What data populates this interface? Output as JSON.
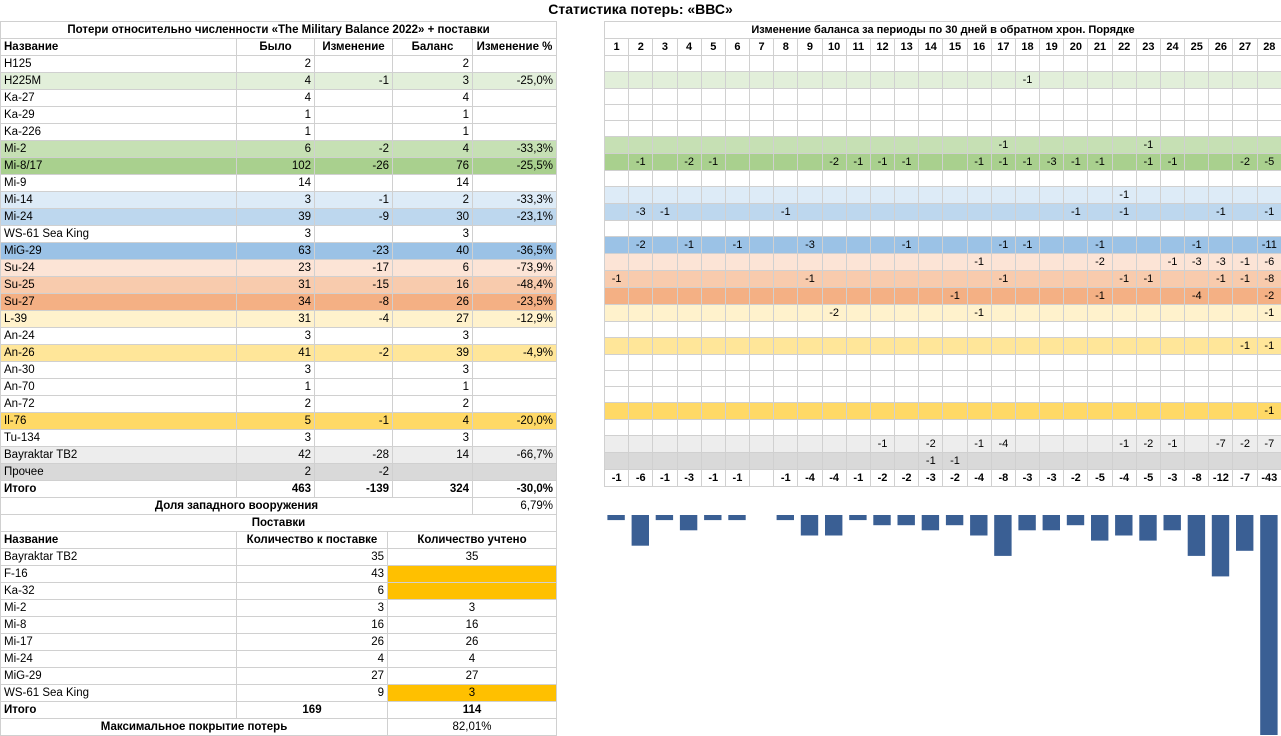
{
  "title": "Статистика потерь: «ВВС»",
  "left_table": {
    "caption": "Потери относительно численности «The Military Balance 2022» + поставки",
    "headers": [
      "Название",
      "Было",
      "Изменение",
      "Баланс",
      "Изменение %"
    ],
    "rows": [
      {
        "name": "H125",
        "was": "2",
        "change": "",
        "balance": "2",
        "pct": "",
        "color": "#ffffff"
      },
      {
        "name": "H225M",
        "was": "4",
        "change": "-1",
        "balance": "3",
        "pct": "-25,0%",
        "color": "#e2efda"
      },
      {
        "name": "Ka-27",
        "was": "4",
        "change": "",
        "balance": "4",
        "pct": "",
        "color": "#ffffff"
      },
      {
        "name": "Ka-29",
        "was": "1",
        "change": "",
        "balance": "1",
        "pct": "",
        "color": "#ffffff"
      },
      {
        "name": "Ka-226",
        "was": "1",
        "change": "",
        "balance": "1",
        "pct": "",
        "color": "#ffffff"
      },
      {
        "name": "Mi-2",
        "was": "6",
        "change": "-2",
        "balance": "4",
        "pct": "-33,3%",
        "color": "#c6e0b4"
      },
      {
        "name": "Mi-8/17",
        "was": "102",
        "change": "-26",
        "balance": "76",
        "pct": "-25,5%",
        "color": "#a9d08e"
      },
      {
        "name": "Mi-9",
        "was": "14",
        "change": "",
        "balance": "14",
        "pct": "",
        "color": "#ffffff"
      },
      {
        "name": "Mi-14",
        "was": "3",
        "change": "-1",
        "balance": "2",
        "pct": "-33,3%",
        "color": "#ddebf7"
      },
      {
        "name": "Mi-24",
        "was": "39",
        "change": "-9",
        "balance": "30",
        "pct": "-23,1%",
        "color": "#bdd7ee"
      },
      {
        "name": "WS-61 Sea King",
        "was": "3",
        "change": "",
        "balance": "3",
        "pct": "",
        "color": "#ffffff"
      },
      {
        "name": "MiG-29",
        "was": "63",
        "change": "-23",
        "balance": "40",
        "pct": "-36,5%",
        "color": "#9bc2e6"
      },
      {
        "name": "Su-24",
        "was": "23",
        "change": "-17",
        "balance": "6",
        "pct": "-73,9%",
        "color": "#fce4d6"
      },
      {
        "name": "Su-25",
        "was": "31",
        "change": "-15",
        "balance": "16",
        "pct": "-48,4%",
        "color": "#f8cbad"
      },
      {
        "name": "Su-27",
        "was": "34",
        "change": "-8",
        "balance": "26",
        "pct": "-23,5%",
        "color": "#f4b084"
      },
      {
        "name": "L-39",
        "was": "31",
        "change": "-4",
        "balance": "27",
        "pct": "-12,9%",
        "color": "#fff2cc"
      },
      {
        "name": "An-24",
        "was": "3",
        "change": "",
        "balance": "3",
        "pct": "",
        "color": "#ffffff"
      },
      {
        "name": "An-26",
        "was": "41",
        "change": "-2",
        "balance": "39",
        "pct": "-4,9%",
        "color": "#ffe699"
      },
      {
        "name": "An-30",
        "was": "3",
        "change": "",
        "balance": "3",
        "pct": "",
        "color": "#ffffff"
      },
      {
        "name": "An-70",
        "was": "1",
        "change": "",
        "balance": "1",
        "pct": "",
        "color": "#ffffff"
      },
      {
        "name": "An-72",
        "was": "2",
        "change": "",
        "balance": "2",
        "pct": "",
        "color": "#ffffff"
      },
      {
        "name": "Il-76",
        "was": "5",
        "change": "-1",
        "balance": "4",
        "pct": "-20,0%",
        "color": "#ffd966"
      },
      {
        "name": "Tu-134",
        "was": "3",
        "change": "",
        "balance": "3",
        "pct": "",
        "color": "#ffffff"
      },
      {
        "name": "Bayraktar TB2",
        "was": "42",
        "change": "-28",
        "balance": "14",
        "pct": "-66,7%",
        "color": "#ededed"
      },
      {
        "name": "Прочее",
        "was": "2",
        "change": "-2",
        "balance": "",
        "pct": "",
        "color": "#d9d9d9"
      }
    ],
    "total": {
      "name": "Итого",
      "was": "463",
      "change": "-139",
      "balance": "324",
      "pct": "-30,0%"
    },
    "western_label": "Доля западного вооружения",
    "western_value": "6,79%"
  },
  "right_table": {
    "caption": "Изменение баланса за периоды по 30 дней в обратном хрон. Порядке",
    "periods": [
      "1",
      "2",
      "3",
      "4",
      "5",
      "6",
      "7",
      "8",
      "9",
      "10",
      "11",
      "12",
      "13",
      "14",
      "15",
      "16",
      "17",
      "18",
      "19",
      "20",
      "21",
      "22",
      "23",
      "24",
      "25",
      "26",
      "27",
      "28"
    ],
    "rows": [
      [],
      [
        {
          "c": 18,
          "v": "-1"
        }
      ],
      [],
      [],
      [],
      [
        {
          "c": 17,
          "v": "-1"
        },
        {
          "c": 23,
          "v": "-1"
        }
      ],
      [
        {
          "c": 2,
          "v": "-1"
        },
        {
          "c": 4,
          "v": "-2"
        },
        {
          "c": 5,
          "v": "-1"
        },
        {
          "c": 10,
          "v": "-2"
        },
        {
          "c": 11,
          "v": "-1"
        },
        {
          "c": 12,
          "v": "-1"
        },
        {
          "c": 13,
          "v": "-1"
        },
        {
          "c": 16,
          "v": "-1"
        },
        {
          "c": 17,
          "v": "-1"
        },
        {
          "c": 18,
          "v": "-1"
        },
        {
          "c": 19,
          "v": "-3"
        },
        {
          "c": 20,
          "v": "-1"
        },
        {
          "c": 21,
          "v": "-1"
        },
        {
          "c": 23,
          "v": "-1"
        },
        {
          "c": 24,
          "v": "-1"
        },
        {
          "c": 27,
          "v": "-2"
        },
        {
          "c": 28,
          "v": "-5"
        }
      ],
      [],
      [
        {
          "c": 22,
          "v": "-1"
        }
      ],
      [
        {
          "c": 2,
          "v": "-3"
        },
        {
          "c": 3,
          "v": "-1"
        },
        {
          "c": 8,
          "v": "-1"
        },
        {
          "c": 20,
          "v": "-1"
        },
        {
          "c": 22,
          "v": "-1"
        },
        {
          "c": 26,
          "v": "-1"
        },
        {
          "c": 28,
          "v": "-1"
        }
      ],
      [],
      [
        {
          "c": 2,
          "v": "-2"
        },
        {
          "c": 4,
          "v": "-1"
        },
        {
          "c": 6,
          "v": "-1"
        },
        {
          "c": 9,
          "v": "-3"
        },
        {
          "c": 13,
          "v": "-1"
        },
        {
          "c": 17,
          "v": "-1"
        },
        {
          "c": 18,
          "v": "-1"
        },
        {
          "c": 21,
          "v": "-1"
        },
        {
          "c": 25,
          "v": "-1"
        },
        {
          "c": 28,
          "v": "-11"
        }
      ],
      [
        {
          "c": 16,
          "v": "-1"
        },
        {
          "c": 21,
          "v": "-2"
        },
        {
          "c": 24,
          "v": "-1"
        },
        {
          "c": 25,
          "v": "-3"
        },
        {
          "c": 26,
          "v": "-3"
        },
        {
          "c": 27,
          "v": "-1"
        },
        {
          "c": 28,
          "v": "-6"
        }
      ],
      [
        {
          "c": 1,
          "v": "-1"
        },
        {
          "c": 9,
          "v": "-1"
        },
        {
          "c": 17,
          "v": "-1"
        },
        {
          "c": 22,
          "v": "-1"
        },
        {
          "c": 23,
          "v": "-1"
        },
        {
          "c": 26,
          "v": "-1"
        },
        {
          "c": 27,
          "v": "-1"
        },
        {
          "c": 28,
          "v": "-8"
        }
      ],
      [
        {
          "c": 15,
          "v": "-1"
        },
        {
          "c": 21,
          "v": "-1"
        },
        {
          "c": 25,
          "v": "-4"
        },
        {
          "c": 28,
          "v": "-2"
        }
      ],
      [
        {
          "c": 10,
          "v": "-2"
        },
        {
          "c": 16,
          "v": "-1"
        },
        {
          "c": 28,
          "v": "-1"
        }
      ],
      [],
      [
        {
          "c": 27,
          "v": "-1"
        },
        {
          "c": 28,
          "v": "-1"
        }
      ],
      [],
      [],
      [],
      [
        {
          "c": 28,
          "v": "-1"
        }
      ],
      [],
      [
        {
          "c": 12,
          "v": "-1"
        },
        {
          "c": 14,
          "v": "-2"
        },
        {
          "c": 16,
          "v": "-1"
        },
        {
          "c": 17,
          "v": "-4"
        },
        {
          "c": 22,
          "v": "-1"
        },
        {
          "c": 23,
          "v": "-2"
        },
        {
          "c": 24,
          "v": "-1"
        },
        {
          "c": 26,
          "v": "-7"
        },
        {
          "c": 27,
          "v": "-2"
        },
        {
          "c": 28,
          "v": "-7"
        }
      ],
      [
        {
          "c": 14,
          "v": "-1"
        },
        {
          "c": 15,
          "v": "-1"
        }
      ]
    ],
    "totals": [
      "-1",
      "-6",
      "-1",
      "-3",
      "-1",
      "-1",
      "",
      "-1",
      "-4",
      "-4",
      "-1",
      "-2",
      "-2",
      "-3",
      "-2",
      "-4",
      "-8",
      "-3",
      "-3",
      "-2",
      "-5",
      "-4",
      "-5",
      "-3",
      "-8",
      "-12",
      "-7",
      "-43"
    ]
  },
  "supplies": {
    "caption": "Поставки",
    "headers": [
      "Название",
      "Количество к поставке",
      "Количество учтено"
    ],
    "rows": [
      {
        "name": "Bayraktar TB2",
        "to_deliver": "35",
        "counted": "35",
        "highlight": false
      },
      {
        "name": "F-16",
        "to_deliver": "43",
        "counted": "",
        "highlight": true
      },
      {
        "name": "Ka-32",
        "to_deliver": "6",
        "counted": "",
        "highlight": true
      },
      {
        "name": "Mi-2",
        "to_deliver": "3",
        "counted": "3",
        "highlight": false
      },
      {
        "name": "Mi-8",
        "to_deliver": "16",
        "counted": "16",
        "highlight": false
      },
      {
        "name": "Mi-17",
        "to_deliver": "26",
        "counted": "26",
        "highlight": false
      },
      {
        "name": "Mi-24",
        "to_deliver": "4",
        "counted": "4",
        "highlight": false
      },
      {
        "name": "MiG-29",
        "to_deliver": "27",
        "counted": "27",
        "highlight": false
      },
      {
        "name": "WS-61 Sea King",
        "to_deliver": "9",
        "counted": "3",
        "highlight": true
      }
    ],
    "total": {
      "name": "Итого",
      "to_deliver": "169",
      "counted": "114"
    },
    "coverage_label": "Максимальное покрытие потерь",
    "coverage_value": "82,01%",
    "highlight_color": "#ffc000"
  },
  "chart_data": {
    "type": "bar",
    "categories": [
      "1",
      "2",
      "3",
      "4",
      "5",
      "6",
      "7",
      "8",
      "9",
      "10",
      "11",
      "12",
      "13",
      "14",
      "15",
      "16",
      "17",
      "18",
      "19",
      "20",
      "21",
      "22",
      "23",
      "24",
      "25",
      "26",
      "27",
      "28"
    ],
    "values": [
      -1,
      -6,
      -1,
      -3,
      -1,
      -1,
      0,
      -1,
      -4,
      -4,
      -1,
      -2,
      -2,
      -3,
      -2,
      -4,
      -8,
      -3,
      -3,
      -2,
      -5,
      -4,
      -5,
      -3,
      -8,
      -12,
      -7,
      -43
    ],
    "color": "#3a5f94",
    "ylim": [
      -43,
      0
    ],
    "title": "",
    "xlabel": "",
    "ylabel": ""
  }
}
